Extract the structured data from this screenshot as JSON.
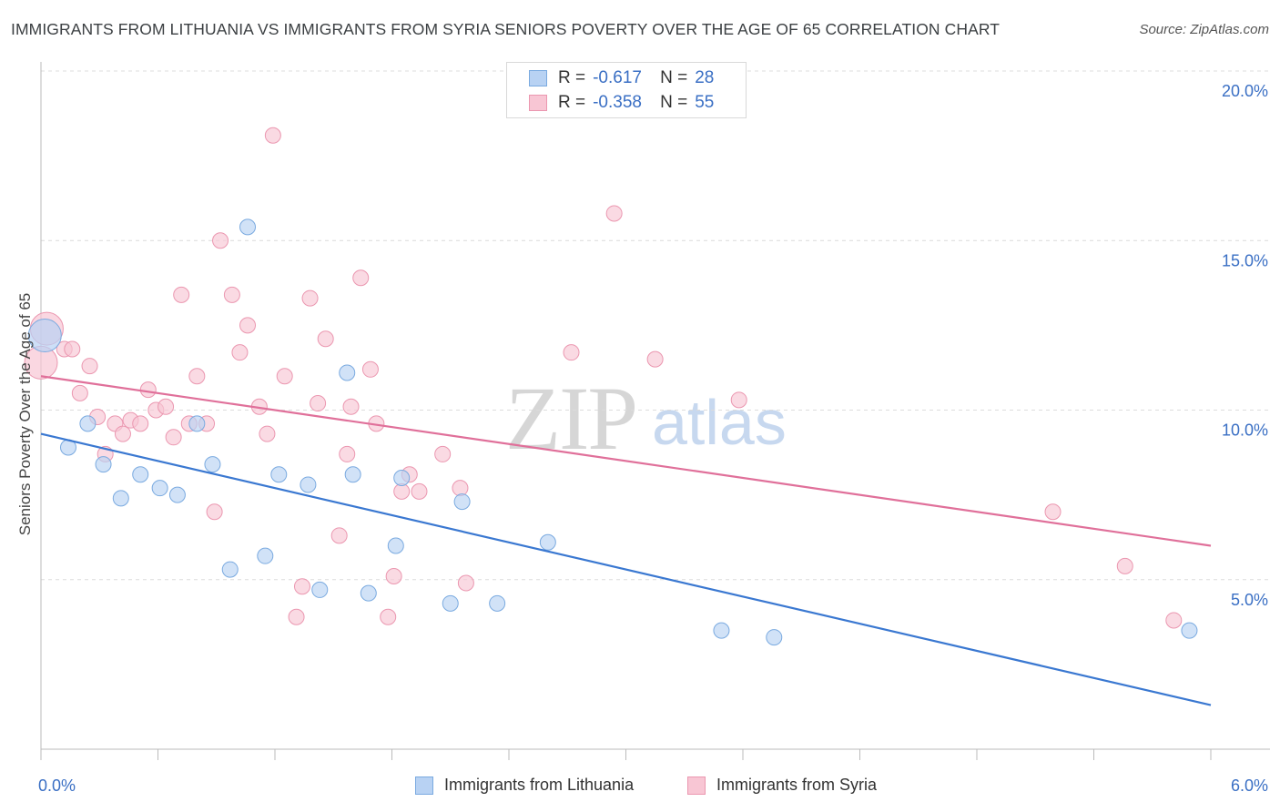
{
  "title": "IMMIGRANTS FROM LITHUANIA VS IMMIGRANTS FROM SYRIA SENIORS POVERTY OVER THE AGE OF 65 CORRELATION CHART",
  "source": "Source: ZipAtlas.com",
  "watermark": {
    "part1": "ZIP",
    "part2": "atlas"
  },
  "legend": {
    "rows": [
      {
        "r_label": "R =",
        "r_value": "-0.617",
        "n_label": "N =",
        "n_value": "28"
      },
      {
        "r_label": "R =",
        "r_value": "-0.358",
        "n_label": "N =",
        "n_value": "55"
      }
    ]
  },
  "colors": {
    "lithuania_fill": "#b8d2f3",
    "lithuania_stroke": "#7aaae0",
    "lithuania_line": "#3a78d1",
    "syria_fill": "#f8c6d4",
    "syria_stroke": "#eb97b0",
    "syria_line": "#e0709a",
    "tick_label": "#3a6fc4",
    "grid": "#dcdcdc"
  },
  "chart_data": {
    "type": "scatter",
    "xlabel": "",
    "ylabel": "Seniors Poverty Over the Age of 65",
    "xlim": [
      0,
      6
    ],
    "ylim": [
      0,
      20
    ],
    "x_tick_labels": [
      "0.0%",
      "6.0%"
    ],
    "y_ticks": [
      5,
      10,
      15,
      20
    ],
    "y_tick_labels": [
      "5.0%",
      "10.0%",
      "15.0%",
      "20.0%"
    ],
    "grid": "horizontal dashed",
    "legend_position": "top-center",
    "series": [
      {
        "name": "Immigrants from Lithuania",
        "r": -0.617,
        "n": 28,
        "trend": {
          "x": [
            0,
            6
          ],
          "y": [
            9.3,
            1.3
          ]
        },
        "points": [
          {
            "x": 0.02,
            "y": 12.2,
            "big": true
          },
          {
            "x": 0.14,
            "y": 8.9
          },
          {
            "x": 0.24,
            "y": 9.6
          },
          {
            "x": 0.32,
            "y": 8.4
          },
          {
            "x": 0.41,
            "y": 7.4
          },
          {
            "x": 0.51,
            "y": 8.1
          },
          {
            "x": 0.61,
            "y": 7.7
          },
          {
            "x": 0.7,
            "y": 7.5
          },
          {
            "x": 0.8,
            "y": 9.6
          },
          {
            "x": 0.88,
            "y": 8.4
          },
          {
            "x": 0.97,
            "y": 5.3
          },
          {
            "x": 1.06,
            "y": 15.4
          },
          {
            "x": 1.15,
            "y": 5.7
          },
          {
            "x": 1.22,
            "y": 8.1
          },
          {
            "x": 1.37,
            "y": 7.8
          },
          {
            "x": 1.43,
            "y": 4.7
          },
          {
            "x": 1.57,
            "y": 11.1
          },
          {
            "x": 1.6,
            "y": 8.1
          },
          {
            "x": 1.68,
            "y": 4.6
          },
          {
            "x": 1.82,
            "y": 6.0
          },
          {
            "x": 1.85,
            "y": 8.0
          },
          {
            "x": 2.16,
            "y": 7.3
          },
          {
            "x": 2.1,
            "y": 4.3
          },
          {
            "x": 2.34,
            "y": 4.3
          },
          {
            "x": 2.6,
            "y": 6.1
          },
          {
            "x": 3.49,
            "y": 3.5
          },
          {
            "x": 3.76,
            "y": 3.3
          },
          {
            "x": 5.89,
            "y": 3.5
          }
        ]
      },
      {
        "name": "Immigrants from Syria",
        "r": -0.358,
        "n": 55,
        "trend": {
          "x": [
            0,
            6
          ],
          "y": [
            11.0,
            6.0
          ]
        },
        "points": [
          {
            "x": 0.03,
            "y": 12.4,
            "big": true
          },
          {
            "x": 0.0,
            "y": 11.4,
            "big": true
          },
          {
            "x": 0.12,
            "y": 11.8
          },
          {
            "x": 0.16,
            "y": 11.8
          },
          {
            "x": 0.2,
            "y": 10.5
          },
          {
            "x": 0.25,
            "y": 11.3
          },
          {
            "x": 0.29,
            "y": 9.8
          },
          {
            "x": 0.33,
            "y": 8.7
          },
          {
            "x": 0.38,
            "y": 9.6
          },
          {
            "x": 0.42,
            "y": 9.3
          },
          {
            "x": 0.46,
            "y": 9.7
          },
          {
            "x": 0.51,
            "y": 9.6
          },
          {
            "x": 0.55,
            "y": 10.6
          },
          {
            "x": 0.59,
            "y": 10.0
          },
          {
            "x": 0.64,
            "y": 10.1
          },
          {
            "x": 0.68,
            "y": 9.2
          },
          {
            "x": 0.72,
            "y": 13.4
          },
          {
            "x": 0.76,
            "y": 9.6
          },
          {
            "x": 0.8,
            "y": 11.0
          },
          {
            "x": 0.85,
            "y": 9.6
          },
          {
            "x": 0.89,
            "y": 7.0
          },
          {
            "x": 0.92,
            "y": 15.0
          },
          {
            "x": 0.98,
            "y": 13.4
          },
          {
            "x": 1.02,
            "y": 11.7
          },
          {
            "x": 1.06,
            "y": 12.5
          },
          {
            "x": 1.12,
            "y": 10.1
          },
          {
            "x": 1.16,
            "y": 9.3
          },
          {
            "x": 1.19,
            "y": 18.1
          },
          {
            "x": 1.25,
            "y": 11.0
          },
          {
            "x": 1.31,
            "y": 3.9
          },
          {
            "x": 1.34,
            "y": 4.8
          },
          {
            "x": 1.38,
            "y": 13.3
          },
          {
            "x": 1.42,
            "y": 10.2
          },
          {
            "x": 1.46,
            "y": 12.1
          },
          {
            "x": 1.53,
            "y": 6.3
          },
          {
            "x": 1.57,
            "y": 8.7
          },
          {
            "x": 1.59,
            "y": 10.1
          },
          {
            "x": 1.64,
            "y": 13.9
          },
          {
            "x": 1.69,
            "y": 11.2
          },
          {
            "x": 1.72,
            "y": 9.6
          },
          {
            "x": 1.78,
            "y": 3.9
          },
          {
            "x": 1.81,
            "y": 5.1
          },
          {
            "x": 1.85,
            "y": 7.6
          },
          {
            "x": 1.89,
            "y": 8.1
          },
          {
            "x": 1.94,
            "y": 7.6
          },
          {
            "x": 2.06,
            "y": 8.7
          },
          {
            "x": 2.15,
            "y": 7.7
          },
          {
            "x": 2.18,
            "y": 4.9
          },
          {
            "x": 2.72,
            "y": 11.7
          },
          {
            "x": 2.94,
            "y": 15.8
          },
          {
            "x": 3.15,
            "y": 11.5
          },
          {
            "x": 3.58,
            "y": 10.3
          },
          {
            "x": 5.19,
            "y": 7.0
          },
          {
            "x": 5.56,
            "y": 5.4
          },
          {
            "x": 5.81,
            "y": 3.8
          }
        ]
      }
    ]
  }
}
